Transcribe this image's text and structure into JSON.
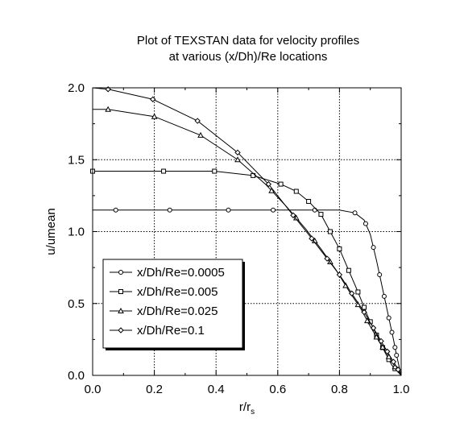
{
  "chart_data": {
    "type": "line",
    "title": "Plot of TEXSTAN data for velocity profiles",
    "subtitle": "at various (x/Dh)/Re locations",
    "xlabel": "r/r",
    "xlabel_sub": "s",
    "ylabel": "u/umean",
    "xlim": [
      0.0,
      1.0
    ],
    "ylim": [
      0.0,
      2.0
    ],
    "x_ticks": [
      "0.0",
      "0.2",
      "0.4",
      "0.6",
      "0.8",
      "1.0"
    ],
    "y_ticks": [
      "0.0",
      "0.5",
      "1.0",
      "1.5",
      "2.0"
    ],
    "grid": true,
    "legend_position": "bottom-left",
    "series": [
      {
        "name": "x/Dh/Re=0.0005",
        "marker": "circle",
        "x": [
          0.0,
          0.075,
          0.25,
          0.44,
          0.585,
          0.72,
          0.8,
          0.85,
          0.88,
          0.9,
          0.92,
          0.94,
          0.96,
          0.975,
          0.985,
          1.0
        ],
        "y": [
          1.15,
          1.15,
          1.15,
          1.15,
          1.15,
          1.15,
          1.15,
          1.13,
          1.08,
          0.98,
          0.8,
          0.6,
          0.4,
          0.25,
          0.14,
          0.0
        ],
        "marker_x": [
          0.075,
          0.25,
          0.44,
          0.585,
          0.72,
          0.85,
          0.885,
          0.91,
          0.93,
          0.945,
          0.96,
          0.97,
          0.98,
          0.985
        ]
      },
      {
        "name": "x/Dh/Re=0.005",
        "marker": "square",
        "x": [
          0.0,
          0.0,
          0.23,
          0.395,
          0.52,
          0.61,
          0.66,
          0.7,
          0.74,
          0.77,
          0.8,
          0.83,
          0.86,
          0.89,
          0.92,
          0.95,
          0.97,
          1.0
        ],
        "y": [
          1.42,
          1.42,
          1.42,
          1.42,
          1.39,
          1.33,
          1.28,
          1.21,
          1.12,
          1.0,
          0.88,
          0.73,
          0.58,
          0.42,
          0.28,
          0.15,
          0.07,
          0.0
        ],
        "marker_x": [
          0.0,
          0.23,
          0.395,
          0.52,
          0.61,
          0.66,
          0.7,
          0.74,
          0.77,
          0.8,
          0.83,
          0.86,
          0.88,
          0.9,
          0.92,
          0.94,
          0.96,
          0.98
        ]
      },
      {
        "name": "x/Dh/Re=0.025",
        "marker": "triangle",
        "x": [
          0.0,
          0.05,
          0.2,
          0.35,
          0.47,
          0.56,
          0.63,
          0.69,
          0.74,
          0.79,
          0.83,
          0.87,
          0.9,
          0.93,
          0.96,
          0.98,
          1.0
        ],
        "y": [
          1.85,
          1.85,
          1.8,
          1.67,
          1.5,
          1.33,
          1.17,
          1.02,
          0.88,
          0.73,
          0.59,
          0.46,
          0.34,
          0.23,
          0.13,
          0.06,
          0.0
        ],
        "marker_x": [
          0.05,
          0.2,
          0.35,
          0.47,
          0.58,
          0.66,
          0.72,
          0.77,
          0.82,
          0.86,
          0.89,
          0.92,
          0.94,
          0.96,
          0.98
        ]
      },
      {
        "name": "x/Dh/Re=0.1",
        "marker": "diamond",
        "x": [
          0.0,
          0.05,
          0.195,
          0.34,
          0.47,
          0.57,
          0.64,
          0.7,
          0.75,
          0.8,
          0.84,
          0.88,
          0.91,
          0.94,
          0.965,
          0.985,
          1.0
        ],
        "y": [
          2.0,
          1.99,
          1.92,
          1.77,
          1.55,
          1.33,
          1.14,
          0.98,
          0.84,
          0.7,
          0.57,
          0.44,
          0.33,
          0.22,
          0.13,
          0.06,
          0.0
        ],
        "marker_x": [
          0.05,
          0.195,
          0.34,
          0.47,
          0.57,
          0.65,
          0.71,
          0.76,
          0.8,
          0.84,
          0.88,
          0.91,
          0.935,
          0.955,
          0.975,
          0.99
        ]
      }
    ]
  }
}
